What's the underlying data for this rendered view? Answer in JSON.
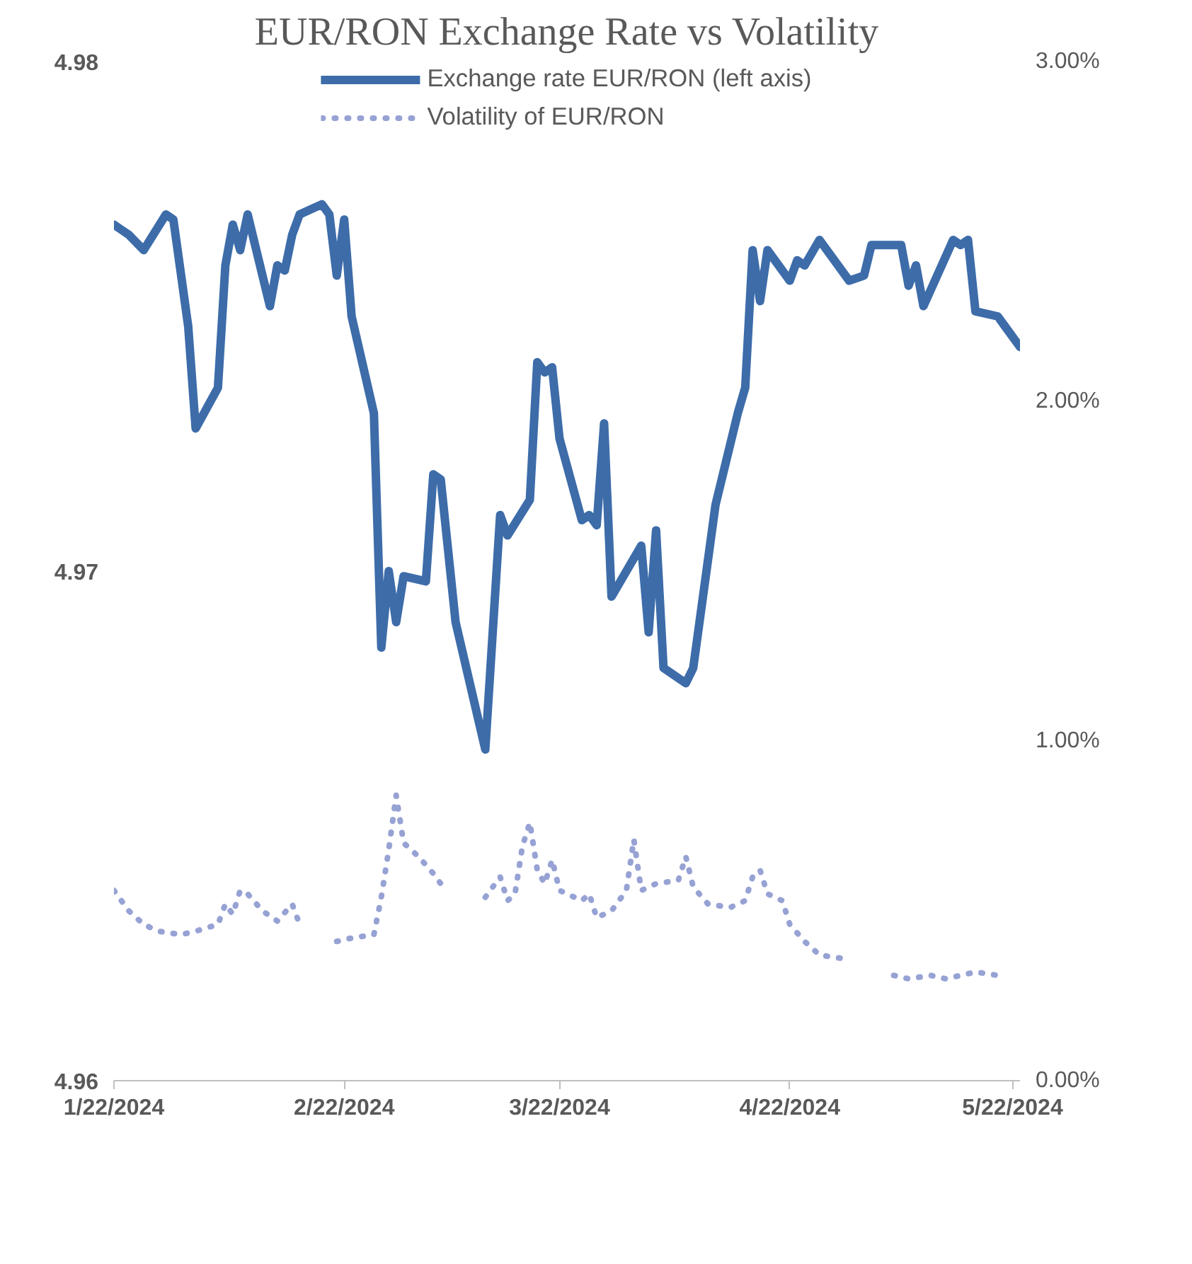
{
  "chart_data": {
    "type": "line",
    "title": "EUR/RON Exchange Rate vs Volatility",
    "xlim": [
      "2024-01-22",
      "2024-05-23"
    ],
    "xticks": [
      {
        "value": "2024-01-22",
        "label": "1/22/2024"
      },
      {
        "value": "2024-02-22",
        "label": "2/22/2024"
      },
      {
        "value": "2024-03-22",
        "label": "3/22/2024"
      },
      {
        "value": "2024-04-22",
        "label": "4/22/2024"
      },
      {
        "value": "2024-05-22",
        "label": "5/22/2024"
      }
    ],
    "ylim": [
      4.96,
      4.98
    ],
    "yticks": [
      4.96,
      4.97,
      4.98
    ],
    "y2lim": [
      0,
      3
    ],
    "y2ticks": [
      {
        "value": 0,
        "label": "0.00%"
      },
      {
        "value": 1,
        "label": "1.00%"
      },
      {
        "value": 2,
        "label": "2.00%"
      },
      {
        "value": 3,
        "label": "3.00%"
      }
    ],
    "grid": false,
    "legend": "top",
    "marker": "none",
    "series": [
      {
        "name": "Exchange rate EUR/RON (left axis)",
        "color": "#3d6ca9",
        "line_style": "solid",
        "x": [
          "2024-01-22",
          "2024-01-23",
          "2024-01-24",
          "2024-01-26",
          "2024-01-29",
          "2024-01-30",
          "2024-02-01",
          "2024-02-02",
          "2024-02-05",
          "2024-02-06",
          "2024-02-07",
          "2024-02-08",
          "2024-02-09",
          "2024-02-12",
          "2024-02-13",
          "2024-02-14",
          "2024-02-15",
          "2024-02-16",
          "2024-02-19",
          "2024-02-20",
          "2024-02-21",
          "2024-02-22",
          "2024-02-23",
          "2024-02-26",
          "2024-02-27",
          "2024-02-28",
          "2024-02-29",
          "2024-03-01",
          "2024-03-04",
          "2024-03-05",
          "2024-03-06",
          "2024-03-08",
          "2024-03-12",
          "2024-03-14",
          "2024-03-15",
          "2024-03-18",
          "2024-03-19",
          "2024-03-20",
          "2024-03-21",
          "2024-03-22",
          "2024-03-25",
          "2024-03-26",
          "2024-03-27",
          "2024-03-28",
          "2024-03-29",
          "2024-04-02",
          "2024-04-03",
          "2024-04-04",
          "2024-04-05",
          "2024-04-08",
          "2024-04-09",
          "2024-04-12",
          "2024-04-15",
          "2024-04-16",
          "2024-04-17",
          "2024-04-18",
          "2024-04-19",
          "2024-04-22",
          "2024-04-23",
          "2024-04-24",
          "2024-04-26",
          "2024-04-30",
          "2024-05-02",
          "2024-05-03",
          "2024-05-07",
          "2024-05-08",
          "2024-05-09",
          "2024-05-10",
          "2024-05-14",
          "2024-05-15",
          "2024-05-16",
          "2024-05-17",
          "2024-05-20",
          "2024-05-21",
          "2024-05-23"
        ],
        "values": [
          4.9768,
          4.9767,
          4.9766,
          4.9763,
          4.977,
          4.9769,
          4.9748,
          4.9728,
          4.9736,
          4.976,
          4.9768,
          4.9763,
          4.977,
          4.9752,
          4.976,
          4.9759,
          4.9766,
          4.977,
          4.9772,
          4.977,
          4.9758,
          4.9769,
          4.975,
          4.9731,
          4.9685,
          4.97,
          4.969,
          4.9699,
          4.9698,
          4.9719,
          4.9718,
          4.969,
          4.9665,
          4.9711,
          4.9707,
          4.9714,
          4.9741,
          4.9739,
          4.974,
          4.9726,
          4.971,
          4.9711,
          4.9709,
          4.9729,
          4.9695,
          4.9705,
          4.9688,
          4.9708,
          4.9681,
          4.9678,
          4.9681,
          4.9713,
          4.9731,
          4.9736,
          4.9763,
          4.9753,
          4.9763,
          4.9757,
          4.9761,
          4.976,
          4.9765,
          4.9757,
          4.9758,
          4.9764,
          4.9764,
          4.9756,
          4.976,
          4.9752,
          4.9765,
          4.9764,
          4.9765,
          4.9751,
          4.975,
          4.9748,
          4.9744
        ]
      },
      {
        "name": "Volatility of EUR/RON",
        "color": "#97a2d4",
        "line_style": "dotted",
        "axis": "y2",
        "x": [
          "2024-01-22",
          "2024-01-24",
          "2024-01-26",
          "2024-01-28",
          "2024-01-31",
          "2024-02-02",
          "2024-02-05",
          "2024-02-06",
          "2024-02-07",
          "2024-02-08",
          "2024-02-09",
          "2024-02-11",
          "2024-02-13",
          "2024-02-15",
          "2024-02-16",
          "2024-02-19",
          "2024-02-21",
          "2024-02-23",
          "2024-02-26",
          "2024-02-27",
          "2024-02-28",
          "2024-02-29",
          "2024-03-01",
          "2024-03-03",
          "2024-03-05",
          "2024-03-06",
          "2024-03-07",
          "2024-03-09",
          "2024-03-12",
          "2024-03-14",
          "2024-03-15",
          "2024-03-16",
          "2024-03-17",
          "2024-03-18",
          "2024-03-19",
          "2024-03-20",
          "2024-03-21",
          "2024-03-22",
          "2024-03-25",
          "2024-03-26",
          "2024-03-27",
          "2024-03-29",
          "2024-03-31",
          "2024-04-01",
          "2024-04-02",
          "2024-04-04",
          "2024-04-07",
          "2024-04-08",
          "2024-04-09",
          "2024-04-11",
          "2024-04-14",
          "2024-04-16",
          "2024-04-17",
          "2024-04-18",
          "2024-04-19",
          "2024-04-21",
          "2024-04-22",
          "2024-04-24",
          "2024-04-26",
          "2024-04-29",
          "2024-05-02",
          "2024-05-06",
          "2024-05-08",
          "2024-05-11",
          "2024-05-13",
          "2024-05-15",
          "2024-05-17",
          "2024-05-20"
        ],
        "values": [
          0.56,
          0.5,
          0.46,
          0.44,
          0.43,
          0.44,
          0.46,
          0.52,
          0.49,
          0.56,
          0.55,
          0.5,
          0.47,
          0.52,
          0.46,
          null,
          0.41,
          0.42,
          0.43,
          0.54,
          0.68,
          0.84,
          0.7,
          0.66,
          0.61,
          0.58,
          0.6,
          null,
          0.54,
          0.6,
          0.53,
          0.55,
          0.69,
          0.76,
          0.62,
          0.58,
          0.65,
          0.56,
          0.53,
          0.55,
          0.48,
          0.5,
          0.56,
          0.71,
          0.56,
          0.58,
          0.59,
          0.66,
          0.57,
          0.52,
          0.51,
          0.53,
          0.6,
          0.62,
          0.55,
          0.53,
          0.46,
          0.41,
          0.37,
          0.36,
          null,
          0.31,
          0.3,
          0.31,
          0.3,
          0.31,
          0.32,
          0.31
        ]
      }
    ]
  }
}
